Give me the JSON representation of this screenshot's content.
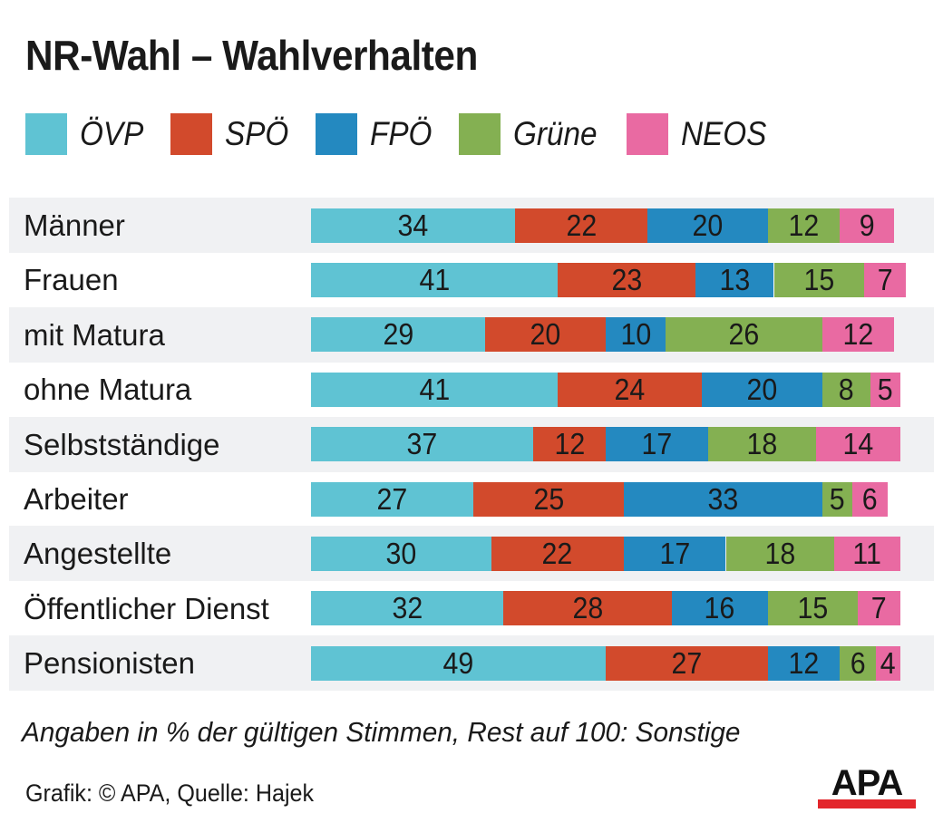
{
  "chart_data": {
    "type": "bar",
    "orientation": "horizontal",
    "stacked": true,
    "title": "NR-Wahl – Wahlverhalten",
    "xlabel": "",
    "ylabel": "",
    "xlim": [
      0,
      100
    ],
    "legend_position": "top",
    "categories": [
      "Männer",
      "Frauen",
      "mit Matura",
      "ohne Matura",
      "Selbstständige",
      "Arbeiter",
      "Angestellte",
      "Öffentlicher Dienst",
      "Pensionisten"
    ],
    "series": [
      {
        "name": "ÖVP",
        "color": "#5fc3d3",
        "values": [
          34,
          41,
          29,
          41,
          37,
          27,
          30,
          32,
          49
        ]
      },
      {
        "name": "SPÖ",
        "color": "#d24a2c",
        "values": [
          22,
          23,
          20,
          24,
          12,
          25,
          22,
          28,
          27
        ]
      },
      {
        "name": "FPÖ",
        "color": "#2489c0",
        "values": [
          20,
          13,
          10,
          20,
          17,
          33,
          17,
          16,
          12
        ]
      },
      {
        "name": "Grüne",
        "color": "#84b052",
        "values": [
          12,
          15,
          26,
          8,
          18,
          5,
          18,
          15,
          6
        ]
      },
      {
        "name": "NEOS",
        "color": "#e96aa2",
        "values": [
          9,
          7,
          12,
          5,
          14,
          6,
          11,
          7,
          4
        ]
      }
    ],
    "note": "Angaben in % der gültigen Stimmen, Rest auf 100: Sonstige"
  },
  "footer": {
    "source": "Grafik: © APA, Quelle: Hajek",
    "logo_text": "APA"
  },
  "colors": {
    "row_alt_bg": "#f0f1f3",
    "logo_red": "#e3262b"
  }
}
